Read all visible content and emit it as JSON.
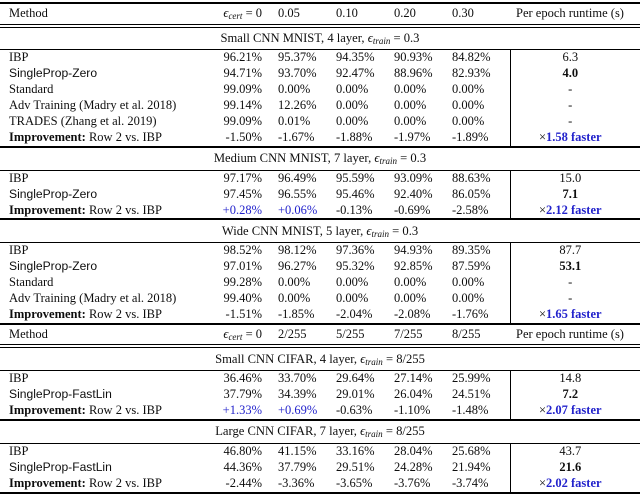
{
  "colors": {
    "text": "#0e0e0e",
    "accent_blue": "#2323cc",
    "rule": "#000000"
  },
  "table": {
    "rows": [
      {
        "type": "header",
        "method": "Method",
        "cols": [
          {
            "base": "ϵ",
            "sub": "cert",
            "after": " = 0"
          },
          "0.05",
          "0.10",
          "0.20",
          "0.30"
        ],
        "runtime": "Per epoch runtime (s)",
        "first": true
      },
      {
        "type": "section",
        "title": {
          "pre": "Small CNN MNIST, 4 layer, ",
          "base": "ϵ",
          "sub": "train",
          "after": " = 0.3"
        }
      },
      {
        "type": "data",
        "method": "IBP",
        "cols": [
          "96.21%",
          "95.37%",
          "94.35%",
          "90.93%",
          "84.82%"
        ],
        "runtime": "6.3"
      },
      {
        "type": "data",
        "method": "SingleProp-Zero",
        "sans": true,
        "cols": [
          "94.71%",
          "93.70%",
          "92.47%",
          "88.96%",
          "82.93%"
        ],
        "runtime": "4.0",
        "runtime_bold": true
      },
      {
        "type": "data",
        "method": "Standard",
        "cols": [
          "99.09%",
          "0.00%",
          "0.00%",
          "0.00%",
          "0.00%"
        ],
        "runtime": "-"
      },
      {
        "type": "data",
        "method": "Adv Training (Madry et al. 2018)",
        "cols": [
          "99.14%",
          "12.26%",
          "0.00%",
          "0.00%",
          "0.00%"
        ],
        "runtime": "-"
      },
      {
        "type": "data",
        "method": "TRADES (Zhang et al. 2019)",
        "cols": [
          "99.09%",
          "0.01%",
          "0.00%",
          "0.00%",
          "0.00%"
        ],
        "runtime": "-"
      },
      {
        "type": "improvement",
        "label_bold": "Improvement:",
        "label_rest": " Row 2 vs. IBP",
        "cols": [
          "-1.50%",
          "-1.67%",
          "-1.88%",
          "-1.97%",
          "-1.89%"
        ],
        "blue_cols": [],
        "runtime_prefix": "×",
        "runtime_text": "1.58 faster"
      },
      {
        "type": "section",
        "title": {
          "pre": "Medium CNN MNIST, 7 layer, ",
          "base": "ϵ",
          "sub": "train",
          "after": " = 0.3"
        }
      },
      {
        "type": "data",
        "method": "IBP",
        "cols": [
          "97.17%",
          "96.49%",
          "95.59%",
          "93.09%",
          "88.63%"
        ],
        "runtime": "15.0"
      },
      {
        "type": "data",
        "method": "SingleProp-Zero",
        "sans": true,
        "cols": [
          "97.45%",
          "96.55%",
          "95.46%",
          "92.40%",
          "86.05%"
        ],
        "runtime": "7.1",
        "runtime_bold": true
      },
      {
        "type": "improvement",
        "label_bold": "Improvement:",
        "label_rest": " Row 2 vs. IBP",
        "cols": [
          "+0.28%",
          "+0.06%",
          "-0.13%",
          "-0.69%",
          "-2.58%"
        ],
        "blue_cols": [
          0,
          1
        ],
        "runtime_prefix": "×",
        "runtime_text": "2.12 faster"
      },
      {
        "type": "section",
        "title": {
          "pre": "Wide CNN MNIST, 5 layer, ",
          "base": "ϵ",
          "sub": "train",
          "after": " = 0.3"
        }
      },
      {
        "type": "data",
        "method": "IBP",
        "cols": [
          "98.52%",
          "98.12%",
          "97.36%",
          "94.93%",
          "89.35%"
        ],
        "runtime": "87.7"
      },
      {
        "type": "data",
        "method": "SingleProp-Zero",
        "sans": true,
        "cols": [
          "97.01%",
          "96.27%",
          "95.32%",
          "92.85%",
          "87.59%"
        ],
        "runtime": "53.1",
        "runtime_bold": true
      },
      {
        "type": "data",
        "method": "Standard",
        "cols": [
          "99.28%",
          "0.00%",
          "0.00%",
          "0.00%",
          "0.00%"
        ],
        "runtime": "-"
      },
      {
        "type": "data",
        "method": "Adv Training (Madry et al. 2018)",
        "cols": [
          "99.40%",
          "0.00%",
          "0.00%",
          "0.00%",
          "0.00%"
        ],
        "runtime": "-"
      },
      {
        "type": "improvement",
        "label_bold": "Improvement:",
        "label_rest": " Row 2 vs. IBP",
        "cols": [
          "-1.51%",
          "-1.85%",
          "-2.04%",
          "-2.08%",
          "-1.76%"
        ],
        "blue_cols": [],
        "runtime_prefix": "×",
        "runtime_text": "1.65 faster"
      },
      {
        "type": "header",
        "method": "Method",
        "cols": [
          {
            "base": "ϵ",
            "sub": "cert",
            "after": " = 0"
          },
          "2/255",
          "5/255",
          "7/255",
          "8/255"
        ],
        "runtime": "Per epoch runtime (s)"
      },
      {
        "type": "section",
        "title": {
          "pre": "Small CNN CIFAR, 4 layer, ",
          "base": "ϵ",
          "sub": "train",
          "after": " = 8/255"
        }
      },
      {
        "type": "data",
        "method": "IBP",
        "cols": [
          "36.46%",
          "33.70%",
          "29.64%",
          "27.14%",
          "25.99%"
        ],
        "runtime": "14.8"
      },
      {
        "type": "data",
        "method": "SingleProp-FastLin",
        "sans": true,
        "cols": [
          "37.79%",
          "34.39%",
          "29.01%",
          "26.04%",
          "24.51%"
        ],
        "runtime": "7.2",
        "runtime_bold": true
      },
      {
        "type": "improvement",
        "label_bold": "Improvement:",
        "label_rest": " Row 2 vs. IBP",
        "cols": [
          "+1.33%",
          "+0.69%",
          "-0.63%",
          "-1.10%",
          "-1.48%"
        ],
        "blue_cols": [
          0,
          1
        ],
        "runtime_prefix": "×",
        "runtime_text": "2.07 faster"
      },
      {
        "type": "section",
        "title": {
          "pre": "Large CNN CIFAR, 7 layer, ",
          "base": "ϵ",
          "sub": "train",
          "after": " = 8/255"
        }
      },
      {
        "type": "data",
        "method": "IBP",
        "cols": [
          "46.80%",
          "41.15%",
          "33.16%",
          "28.04%",
          "25.68%"
        ],
        "runtime": "43.7"
      },
      {
        "type": "data",
        "method": "SingleProp-FastLin",
        "sans": true,
        "cols": [
          "44.36%",
          "37.79%",
          "29.51%",
          "24.28%",
          "21.94%"
        ],
        "runtime": "21.6",
        "runtime_bold": true
      },
      {
        "type": "improvement",
        "label_bold": "Improvement:",
        "label_rest": " Row 2 vs. IBP",
        "cols": [
          "-2.44%",
          "-3.36%",
          "-3.65%",
          "-3.76%",
          "-3.74%"
        ],
        "blue_cols": [],
        "runtime_prefix": "×",
        "runtime_text": "2.02 faster",
        "last": true
      }
    ]
  }
}
